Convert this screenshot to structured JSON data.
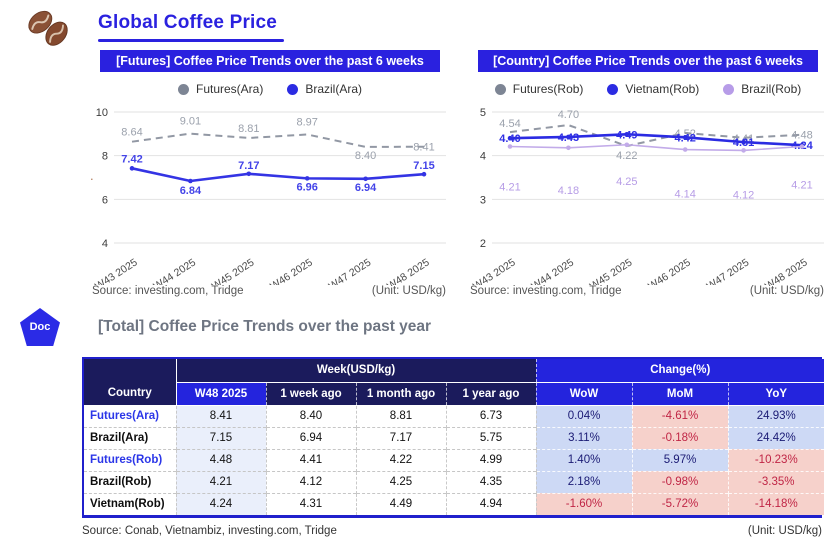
{
  "header": {
    "title": "Global Coffee Price"
  },
  "colors": {
    "accent": "#2a21df",
    "table_navy": "#1b1b5c",
    "table_blue": "#2424dd",
    "positive_bg": "#cdd9f5",
    "positive_text": "#1a1a74",
    "negative_bg": "#f6d1cb",
    "negative_text": "#c02545",
    "w48_highlight": "#eaeffb",
    "futures_gray": "#9298a4",
    "arabica_blue": "#3434e4",
    "vietnam_blue": "#2b2be2",
    "brazil_purple": "#c2abe9"
  },
  "charts": [
    {
      "title": "[Futures] Coffee Price Trends over the past 6 weeks",
      "source": "Source: investing.com, Tridge",
      "unit": "(Unit: USD/kg)",
      "chart_data": {
        "type": "line",
        "x": [
          "W43 2025",
          "W44 2025",
          "W45 2025",
          "W46 2025",
          "W47 2025",
          "W48 2025"
        ],
        "ylim": [
          4,
          10
        ],
        "yticks": [
          10,
          8,
          6,
          4
        ],
        "grid": true,
        "legend_position": "top",
        "series": [
          {
            "name": "Futures(Ara)",
            "values": [
              8.64,
              9.01,
              8.81,
              8.97,
              8.4,
              8.41
            ],
            "color": "#9298a4",
            "legend_color": "#7d8594",
            "label_color": "#9ba1ac",
            "style": "dashed",
            "width": 2,
            "label_dy": [
              -6,
              -9,
              -6,
              -9,
              12,
              4
            ]
          },
          {
            "name": "Brazil(Ara)",
            "values": [
              7.42,
              6.84,
              7.17,
              6.96,
              6.94,
              7.15
            ],
            "color": "#3434e4",
            "legend_color": "#2b2be2",
            "label_color": "#4343e8",
            "style": "solid",
            "width": 2.6,
            "bold_labels": true,
            "label_dy": [
              -6,
              13,
              -5,
              12,
              12,
              -5
            ]
          }
        ]
      }
    },
    {
      "title": "[Country] Coffee Price Trends over the past 6 weeks",
      "source": "Source: investing.com, Tridge",
      "unit": "(Unit: USD/kg)",
      "chart_data": {
        "type": "line",
        "x": [
          "W43 2025",
          "W44 2025",
          "W45 2025",
          "W46 2025",
          "W47 2025",
          "W48 2025"
        ],
        "ylim": [
          2,
          5
        ],
        "yticks": [
          5,
          4,
          3,
          2
        ],
        "grid": true,
        "legend_position": "top",
        "series": [
          {
            "name": "Futures(Rob)",
            "values": [
              4.54,
              4.7,
              4.22,
              4.52,
              4.41,
              4.48
            ],
            "color": "#9298a4",
            "legend_color": "#7d8594",
            "label_color": "#9ba1ac",
            "style": "dashed",
            "width": 2,
            "label_dy": [
              -5,
              -7,
              13,
              4,
              4,
              4
            ]
          },
          {
            "name": "Vietnam(Rob)",
            "values": [
              4.4,
              4.43,
              4.49,
              4.42,
              4.31,
              4.24
            ],
            "color": "#2b2be2",
            "legend_color": "#2b2be2",
            "label_color": "#2f2fe4",
            "style": "solid",
            "width": 2.6,
            "bold_labels": true,
            "label_dy": [
              4,
              4,
              4,
              4,
              4,
              4
            ]
          },
          {
            "name": "Brazil(Rob)",
            "values": [
              4.21,
              4.18,
              4.25,
              4.14,
              4.12,
              4.21
            ],
            "color": "#c2abe9",
            "legend_color": "#b79ce8",
            "label_color": "#b69ce6",
            "style": "solid",
            "width": 1.6,
            "label_dy": [
              44,
              46,
              40,
              48,
              48,
              42
            ]
          }
        ]
      }
    }
  ],
  "total_section": {
    "badge": "Doc",
    "heading": "[Total] Coffee Price Trends over the past year"
  },
  "table": {
    "corner_label": "Country",
    "groups": [
      {
        "label": "Week(USD/kg)",
        "span": 4,
        "variant": "navy"
      },
      {
        "label": "Change(%)",
        "span": 3,
        "variant": "blue"
      }
    ],
    "columns": [
      {
        "label": "W48 2025",
        "variant": "blue"
      },
      {
        "label": "1 week ago",
        "variant": "navy"
      },
      {
        "label": "1 month ago",
        "variant": "navy"
      },
      {
        "label": "1 year ago",
        "variant": "navy"
      },
      {
        "label": "WoW",
        "variant": "blue"
      },
      {
        "label": "MoM",
        "variant": "blue"
      },
      {
        "label": "YoY",
        "variant": "blue"
      }
    ],
    "rows": [
      {
        "country": "Futures(Ara)",
        "accent": true,
        "week": [
          "8.41",
          "8.40",
          "8.81",
          "6.73"
        ],
        "changes": [
          {
            "value": "0.04%",
            "tone": "pos"
          },
          {
            "value": "-4.61%",
            "tone": "neg"
          },
          {
            "value": "24.93%",
            "tone": "pos"
          }
        ]
      },
      {
        "country": "Brazil(Ara)",
        "accent": false,
        "week": [
          "7.15",
          "6.94",
          "7.17",
          "5.75"
        ],
        "changes": [
          {
            "value": "3.11%",
            "tone": "pos"
          },
          {
            "value": "-0.18%",
            "tone": "neg"
          },
          {
            "value": "24.42%",
            "tone": "pos"
          }
        ]
      },
      {
        "country": "Futures(Rob)",
        "accent": true,
        "week": [
          "4.48",
          "4.41",
          "4.22",
          "4.99"
        ],
        "changes": [
          {
            "value": "1.40%",
            "tone": "pos"
          },
          {
            "value": "5.97%",
            "tone": "pos"
          },
          {
            "value": "-10.23%",
            "tone": "neg"
          }
        ]
      },
      {
        "country": "Brazil(Rob)",
        "accent": false,
        "week": [
          "4.21",
          "4.12",
          "4.25",
          "4.35"
        ],
        "changes": [
          {
            "value": "2.18%",
            "tone": "pos"
          },
          {
            "value": "-0.98%",
            "tone": "neg"
          },
          {
            "value": "-3.35%",
            "tone": "neg"
          }
        ]
      },
      {
        "country": "Vietnam(Rob)",
        "accent": false,
        "week": [
          "4.24",
          "4.31",
          "4.49",
          "4.94"
        ],
        "changes": [
          {
            "value": "-1.60%",
            "tone": "neg"
          },
          {
            "value": "-5.72%",
            "tone": "neg"
          },
          {
            "value": "-14.18%",
            "tone": "neg"
          }
        ]
      }
    ],
    "source": "Source: Conab, Vietnambiz, investing.com, Tridge",
    "unit": "(Unit: USD/kg)"
  }
}
